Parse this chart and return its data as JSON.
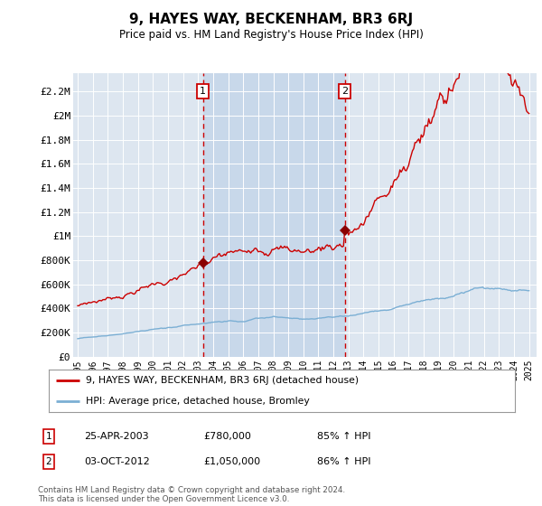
{
  "title": "9, HAYES WAY, BECKENHAM, BR3 6RJ",
  "subtitle": "Price paid vs. HM Land Registry's House Price Index (HPI)",
  "plot_bg_color": "#dde6f0",
  "shade_color": "#c8d8ea",
  "ylabel_ticks": [
    "£0",
    "£200K",
    "£400K",
    "£600K",
    "£800K",
    "£1M",
    "£1.2M",
    "£1.4M",
    "£1.6M",
    "£1.8M",
    "£2M",
    "£2.2M"
  ],
  "ytick_values": [
    0,
    200000,
    400000,
    600000,
    800000,
    1000000,
    1200000,
    1400000,
    1600000,
    1800000,
    2000000,
    2200000
  ],
  "ylim": [
    0,
    2350000
  ],
  "sale1_x": 2003.32,
  "sale1_price": 780000,
  "sale1_label": "1",
  "sale2_x": 2012.75,
  "sale2_price": 1050000,
  "sale2_label": "2",
  "legend_label_red": "9, HAYES WAY, BECKENHAM, BR3 6RJ (detached house)",
  "legend_label_blue": "HPI: Average price, detached house, Bromley",
  "info1_date": "25-APR-2003",
  "info1_price": "£780,000",
  "info1_hpi": "85% ↑ HPI",
  "info2_date": "03-OCT-2012",
  "info2_price": "£1,050,000",
  "info2_hpi": "86% ↑ HPI",
  "footer": "Contains HM Land Registry data © Crown copyright and database right 2024.\nThis data is licensed under the Open Government Licence v3.0.",
  "red_color": "#cc0000",
  "blue_color": "#7bafd4",
  "marker_color": "#8b0000"
}
